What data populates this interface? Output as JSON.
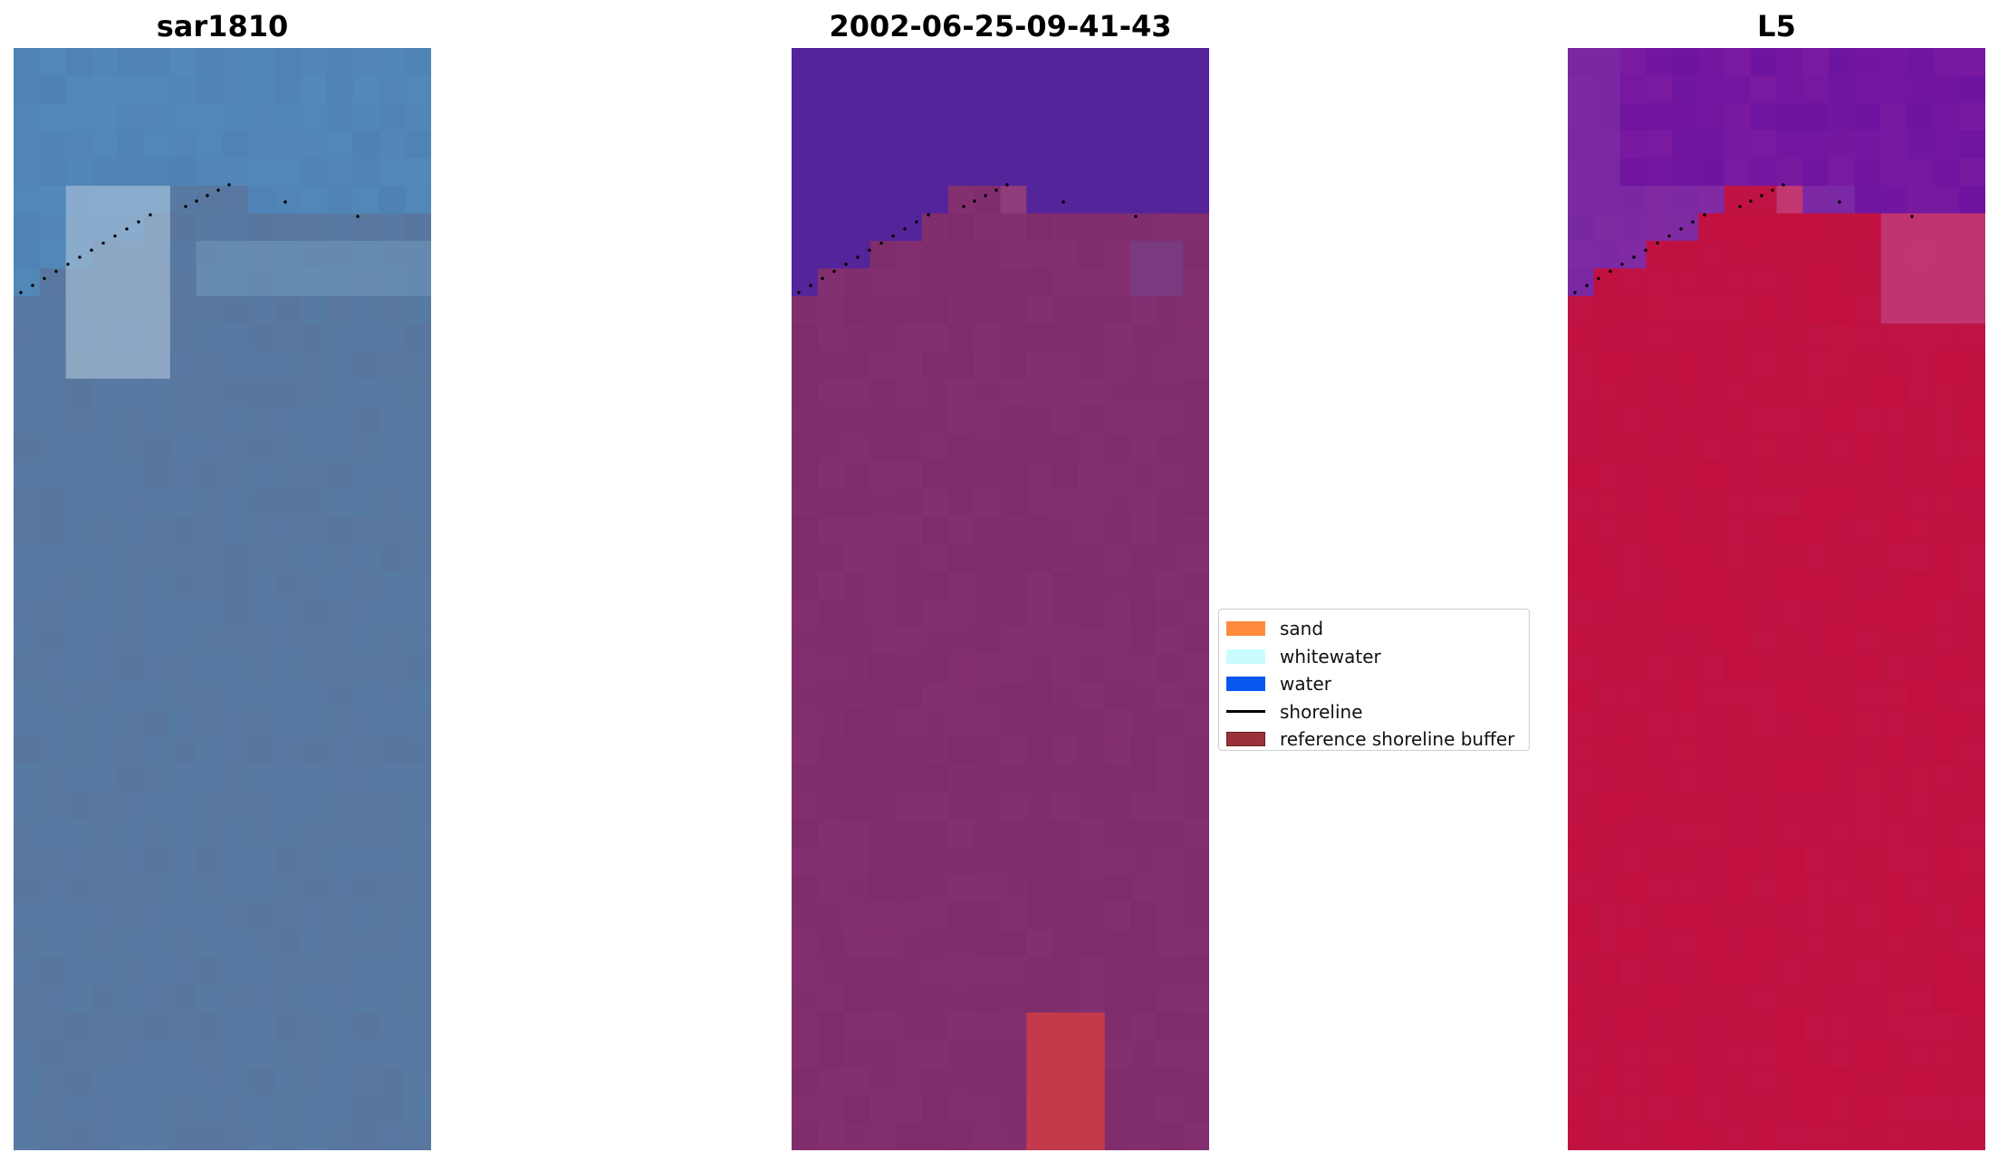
{
  "panels": [
    {
      "title": "sar1810",
      "style": "rgb"
    },
    {
      "title": "2002-06-25-09-41-43",
      "style": "classified"
    },
    {
      "title": "L5",
      "style": "index"
    }
  ],
  "legend": {
    "items": [
      {
        "label": "sand",
        "color": "#ff8b3d",
        "kind": "patch"
      },
      {
        "label": "whitewater",
        "color": "#c8fcff",
        "kind": "patch"
      },
      {
        "label": "water",
        "color": "#0a57f0",
        "kind": "patch"
      },
      {
        "label": "shoreline",
        "color": "#000000",
        "kind": "line"
      },
      {
        "label": "reference shoreline buffer",
        "color": "#9a3339",
        "kind": "patch"
      }
    ]
  },
  "colors": {
    "rgb_water": "#4f82b4",
    "rgb_land": "#5d7396",
    "rgb_foam": "#e8ecf4",
    "class_water": "#54249a",
    "class_land": "#7e2c6c",
    "class_buffer": "#c33a4a",
    "index_water": "#7a1aa0",
    "index_land": "#c2103e",
    "shoreline_dots": "#000000"
  }
}
